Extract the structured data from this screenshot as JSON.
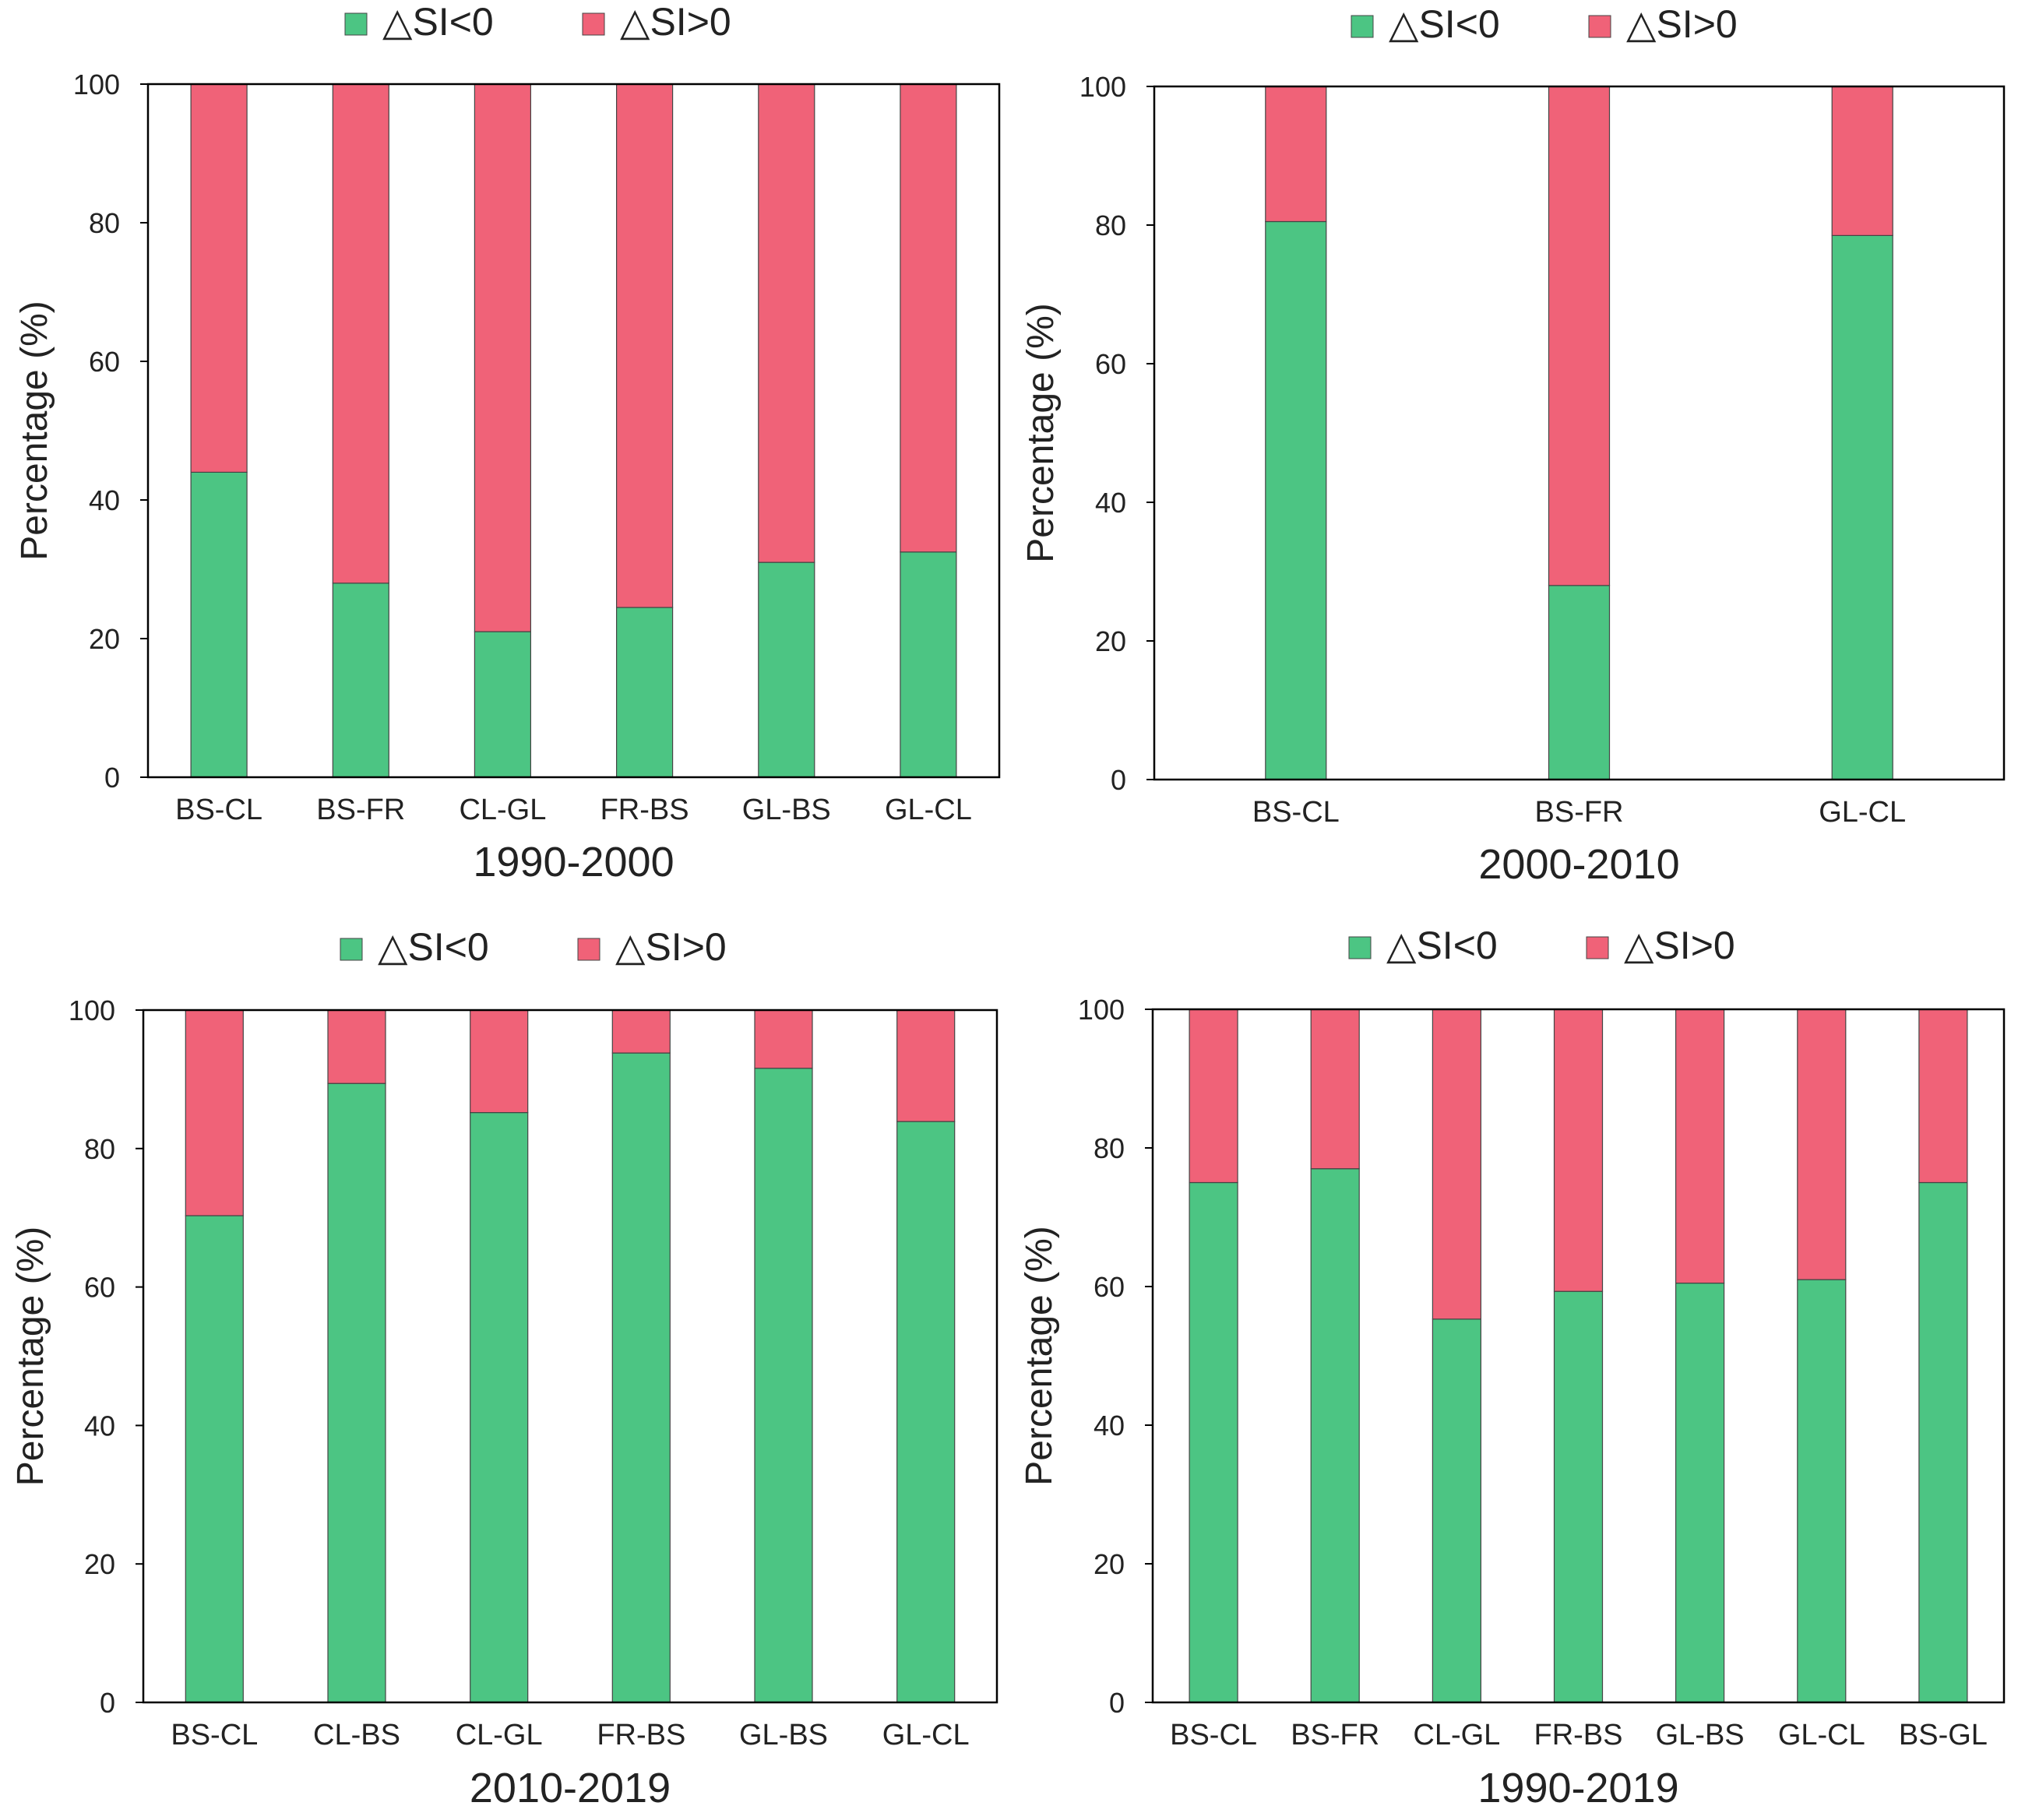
{
  "legend": {
    "neg_label": "△SI<0",
    "pos_label": "△SI>0"
  },
  "colors": {
    "neg": "#4cc583",
    "pos": "#f06278",
    "axis": "#000000"
  },
  "chart_data": [
    {
      "type": "bar",
      "stacked": true,
      "title": "1990-2000",
      "xlabel": "1990-2000",
      "ylabel": "Percentage (%)",
      "ylim": [
        0,
        100
      ],
      "yticks": [
        "0",
        "20",
        "40",
        "60",
        "80",
        "100"
      ],
      "legend_position": "top",
      "categories": [
        "BS-CL",
        "BS-FR",
        "CL-GL",
        "FR-BS",
        "GL-BS",
        "GL-CL"
      ],
      "series": [
        {
          "name": "△SI<0",
          "values": [
            44,
            28,
            21,
            24.5,
            31,
            32.5
          ]
        },
        {
          "name": "△SI>0",
          "values": [
            56,
            72,
            79,
            75.5,
            69,
            67.5
          ]
        }
      ]
    },
    {
      "type": "bar",
      "stacked": true,
      "title": "2000-2010",
      "xlabel": "2000-2010",
      "ylabel": "Percentage (%)",
      "ylim": [
        0,
        100
      ],
      "yticks": [
        "0",
        "20",
        "40",
        "60",
        "80",
        "100"
      ],
      "legend_position": "top",
      "categories": [
        "BS-CL",
        "BS-FR",
        "GL-CL"
      ],
      "series": [
        {
          "name": "△SI<0",
          "values": [
            80.5,
            28,
            78.5
          ]
        },
        {
          "name": "△SI>0",
          "values": [
            19.5,
            72,
            21.5
          ]
        }
      ]
    },
    {
      "type": "bar",
      "stacked": true,
      "title": "2010-2019",
      "xlabel": "2010-2019",
      "ylabel": "Percentage (%)",
      "ylim": [
        0,
        100
      ],
      "yticks": [
        "0",
        "20",
        "40",
        "60",
        "80",
        "100"
      ],
      "legend_position": "top",
      "categories": [
        "BS-CL",
        "CL-BS",
        "CL-GL",
        "FR-BS",
        "GL-BS",
        "GL-CL"
      ],
      "series": [
        {
          "name": "△SI<0",
          "values": [
            70.3,
            89.4,
            85.2,
            93.8,
            91.6,
            83.9
          ]
        },
        {
          "name": "△SI>0",
          "values": [
            29.7,
            10.6,
            14.8,
            6.2,
            8.4,
            16.1
          ]
        }
      ]
    },
    {
      "type": "bar",
      "stacked": true,
      "title": "1990-2019",
      "xlabel": "1990-2019",
      "ylabel": "Percentage (%)",
      "ylim": [
        0,
        100
      ],
      "yticks": [
        "0",
        "20",
        "40",
        "60",
        "80",
        "100"
      ],
      "legend_position": "top",
      "categories": [
        "BS-CL",
        "BS-FR",
        "CL-GL",
        "FR-BS",
        "GL-BS",
        "GL-CL",
        "BS-GL"
      ],
      "series": [
        {
          "name": "△SI<0",
          "values": [
            75,
            77,
            55.3,
            59.3,
            60.5,
            61,
            75
          ]
        },
        {
          "name": "△SI>0",
          "values": [
            25,
            23,
            44.7,
            40.7,
            39.5,
            39,
            25
          ]
        }
      ]
    }
  ]
}
